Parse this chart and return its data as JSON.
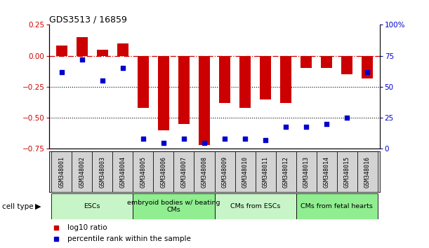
{
  "title": "GDS3513 / 16859",
  "samples": [
    "GSM348001",
    "GSM348002",
    "GSM348003",
    "GSM348004",
    "GSM348005",
    "GSM348006",
    "GSM348007",
    "GSM348008",
    "GSM348009",
    "GSM348010",
    "GSM348011",
    "GSM348012",
    "GSM348013",
    "GSM348014",
    "GSM348015",
    "GSM348016"
  ],
  "log10_ratio": [
    0.08,
    0.15,
    0.05,
    0.1,
    -0.42,
    -0.6,
    -0.55,
    -0.72,
    -0.38,
    -0.42,
    -0.35,
    -0.38,
    -0.1,
    -0.1,
    -0.15,
    -0.18
  ],
  "percentile_rank": [
    62,
    72,
    55,
    65,
    8,
    5,
    8,
    5,
    8,
    8,
    7,
    18,
    18,
    20,
    25,
    62
  ],
  "cell_type_groups": [
    {
      "label": "ESCs",
      "start": 0,
      "end": 4,
      "color": "#c8f5c8"
    },
    {
      "label": "embryoid bodies w/ beating\nCMs",
      "start": 4,
      "end": 8,
      "color": "#90ee90"
    },
    {
      "label": "CMs from ESCs",
      "start": 8,
      "end": 12,
      "color": "#c8f5c8"
    },
    {
      "label": "CMs from fetal hearts",
      "start": 12,
      "end": 16,
      "color": "#90ee90"
    }
  ],
  "bar_color": "#cc0000",
  "dot_color": "#0000cc",
  "ylim_left": [
    -0.75,
    0.25
  ],
  "ylim_right": [
    0,
    100
  ],
  "hline_zero_color": "#cc0000",
  "hline_dotted_color": "black",
  "label_bg": "#d3d3d3"
}
